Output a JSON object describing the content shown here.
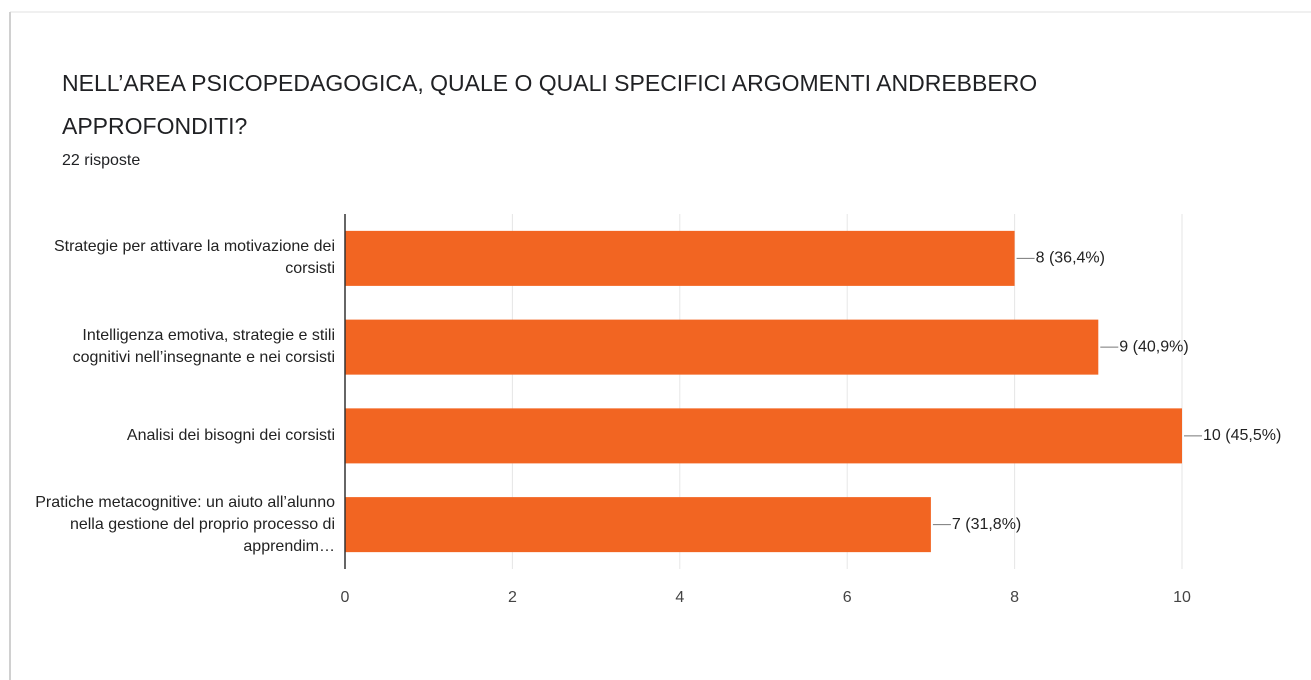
{
  "chart_data": {
    "type": "bar",
    "orientation": "horizontal",
    "title": "NELL’AREA PSICOPEDAGOGICA, QUALE O QUALI SPECIFICI ARGOMENTI ANDREBBERO APPROFONDITI?",
    "subtitle": "22 risposte",
    "categories": [
      "Strategie per attivare la motivazione dei corsisti",
      "Intelligenza emotiva, strategie e stili cognitivi nell’insegnante e nei corsisti",
      "Analisi dei bisogni dei corsisti",
      "Pratiche metacognitive: un aiuto all’alunno nella gestione del proprio processo di apprendim…"
    ],
    "values": [
      8,
      9,
      10,
      7
    ],
    "value_labels": [
      "8 (36,4%)",
      "9 (40,9%)",
      "10 (45,5%)",
      "7 (31,8%)"
    ],
    "color": "#f26522",
    "xlim": [
      0,
      10
    ],
    "xticks": [
      0,
      2,
      4,
      6,
      8,
      10
    ],
    "grid": true
  }
}
